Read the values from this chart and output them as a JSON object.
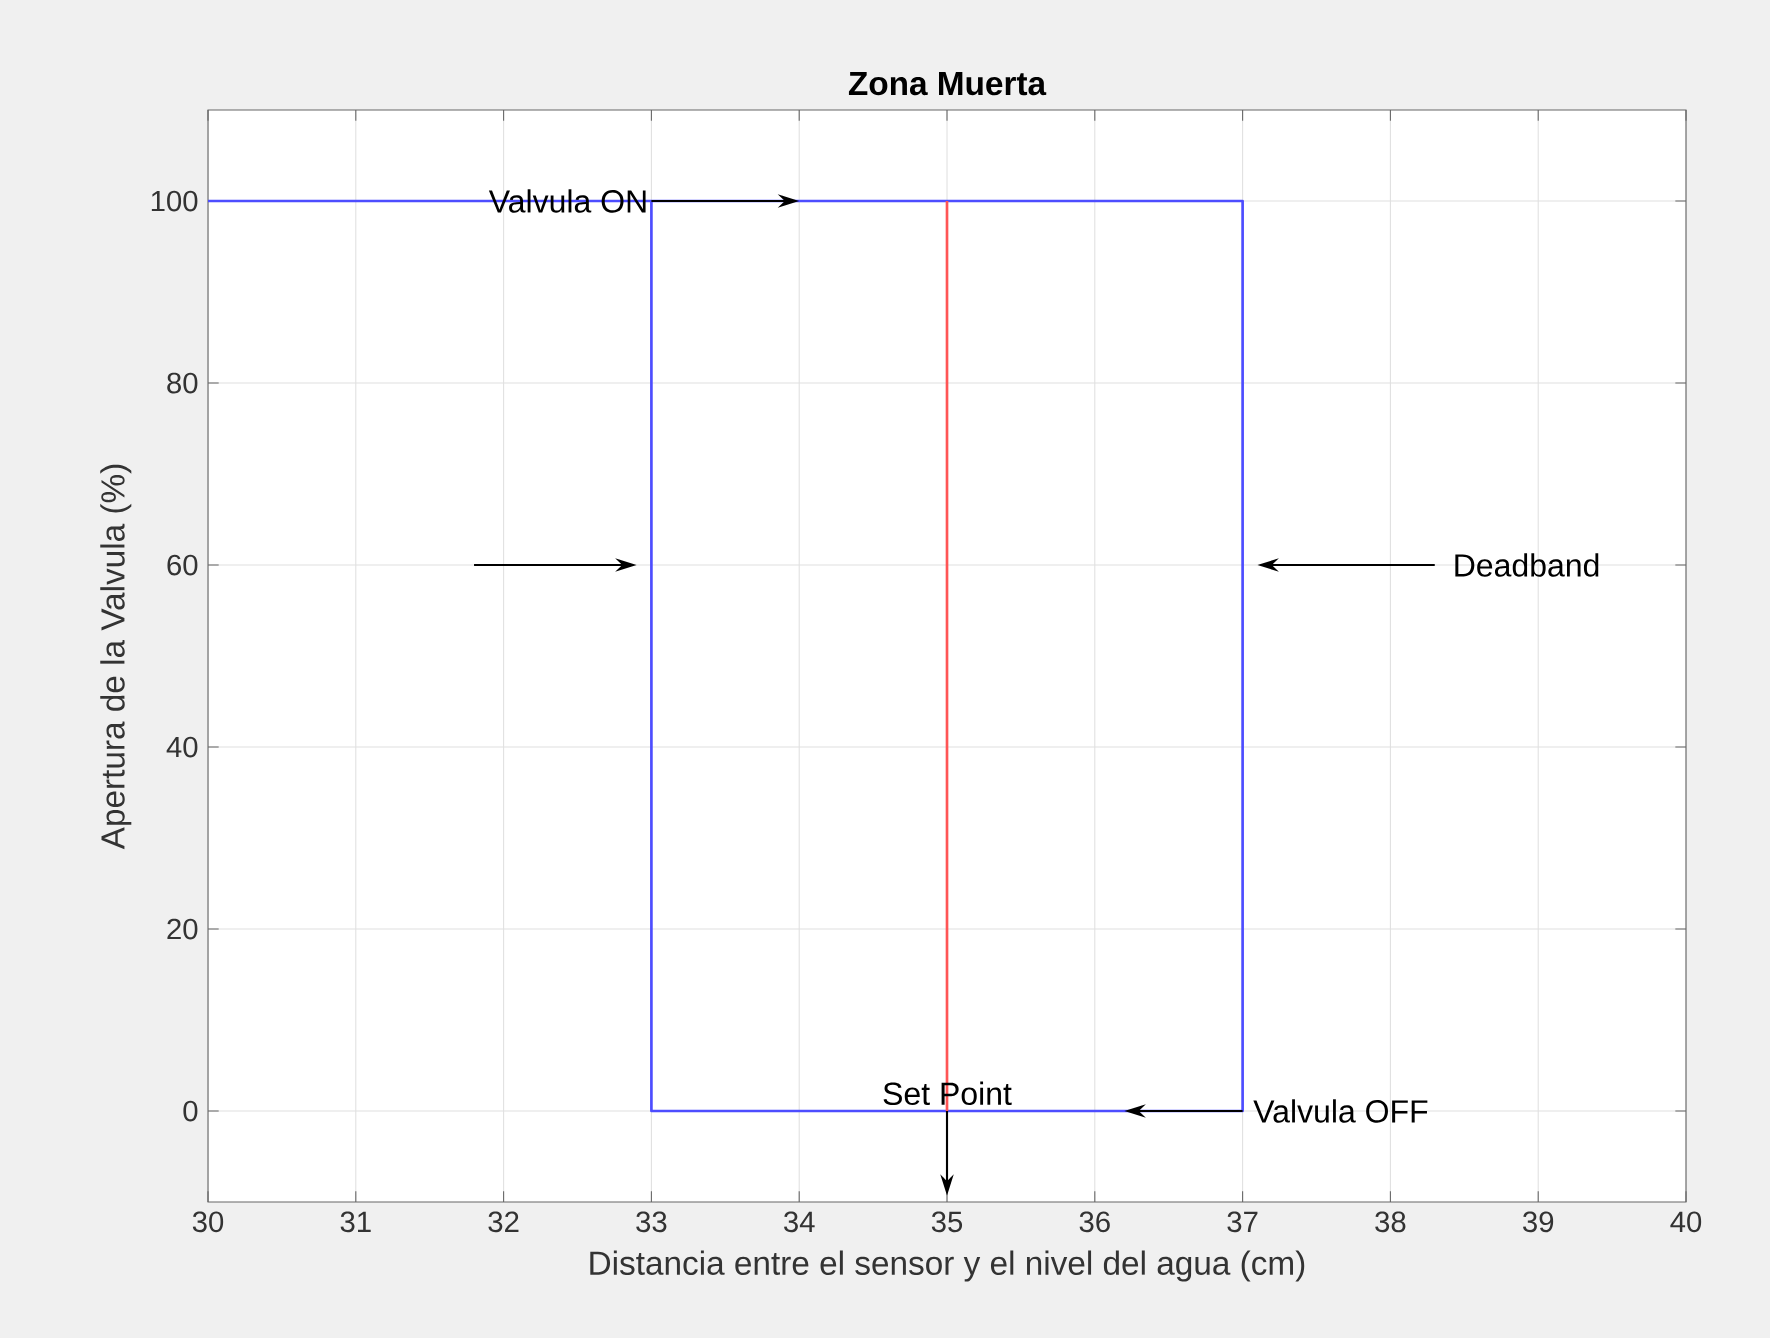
{
  "chart_data": {
    "type": "line",
    "title": "Zona Muerta",
    "xlabel": "Distancia entre el sensor y el nivel del agua (cm)",
    "ylabel": "Apertura de la Valvula (%)",
    "xlim": [
      30,
      40
    ],
    "ylim": [
      -10,
      110
    ],
    "xticks": [
      30,
      31,
      32,
      33,
      34,
      35,
      36,
      37,
      38,
      39,
      40
    ],
    "yticks": [
      0,
      20,
      40,
      60,
      80,
      100
    ],
    "grid": true,
    "series": [
      {
        "color": "#4d4dff",
        "x": [
          30,
          37,
          37,
          33,
          33
        ],
        "values": [
          100,
          100,
          0,
          0,
          100
        ]
      },
      {
        "color": "#ff5555",
        "x": [
          35,
          35
        ],
        "values": [
          0,
          100
        ]
      }
    ],
    "annotations": [
      {
        "text": "Valvula ON",
        "x": 34,
        "y": 100
      },
      "Deadband",
      {
        "text": "Set Point",
        "x": 35,
        "y": 0
      },
      {
        "text": "Valvula OFF",
        "x": 37,
        "y": 0
      }
    ]
  }
}
